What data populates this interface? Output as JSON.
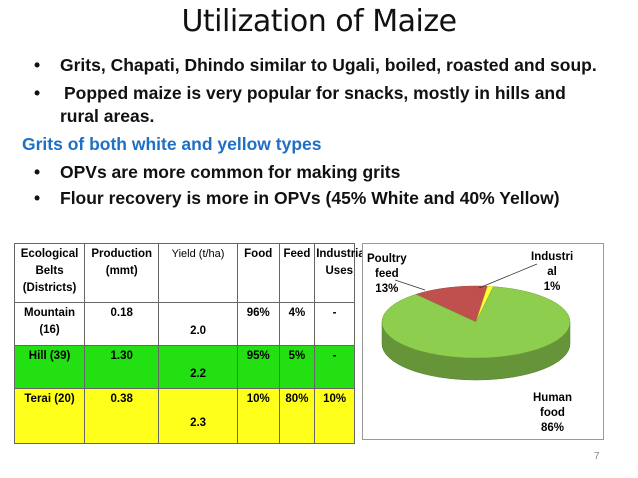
{
  "title": "Utilization of Maize",
  "bullets_top": [
    "Grits, Chapati, Dhindo similar to Ugali, boiled, roasted and soup.",
    "Popped maize is very popular for snacks, mostly in hills and",
    "rural areas."
  ],
  "subheading": "Grits of both white and yellow types",
  "bullets_bottom": [
    "OPVs are more common for making grits",
    "Flour recovery is more in OPVs (45% White and 40% Yellow)"
  ],
  "bullet_char": "•",
  "table": {
    "headers": [
      "Ecological Belts (Districts)",
      "Production (mmt)",
      "Yield (t/ha)",
      "Food",
      "Feed",
      "Industrial Uses"
    ],
    "rows": [
      {
        "belt": "Mountain (16)",
        "production": "0.18",
        "yield": "2.0",
        "food": "96%",
        "feed": "4%",
        "industrial": "-"
      },
      {
        "belt": "Hill (39)",
        "production": "1.30",
        "yield": "2.2",
        "food": "95%",
        "feed": "5%",
        "industrial": "-"
      },
      {
        "belt": "Terai (20)",
        "production": "0.38",
        "yield": "2.3",
        "food": "10%",
        "feed": "80%",
        "industrial": "10%"
      }
    ],
    "row_colors": [
      "#ffffff",
      "#22e012",
      "#ffff1c"
    ]
  },
  "pie_labels": {
    "poultry": [
      "Poultry",
      "feed",
      "13%"
    ],
    "industrial": [
      "Industri",
      "al",
      "1%"
    ],
    "human": [
      "Human",
      "food",
      "86%"
    ]
  },
  "chart_data": {
    "type": "pie",
    "slices": [
      {
        "label": "Human food",
        "value": 86,
        "color": "#8ece4e"
      },
      {
        "label": "Poultry feed",
        "value": 13,
        "color": "#c0504d"
      },
      {
        "label": "Industrial",
        "value": 1,
        "color": "#ffff33"
      }
    ]
  },
  "page_number": "7"
}
